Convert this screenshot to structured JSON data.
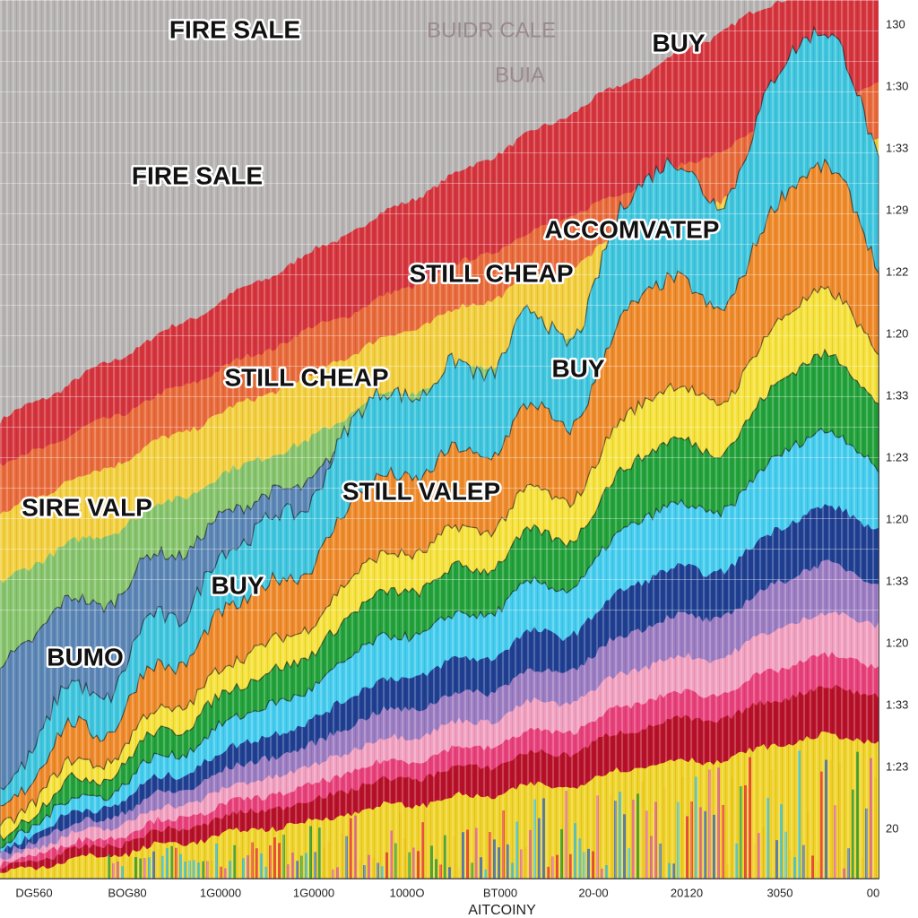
{
  "annotations": [
    "FIRE SALE",
    "BUIDR CALE",
    "BUIA",
    "BUY",
    "FIRE SALE",
    "ACCOMVATEP",
    "STILL CHEAP",
    "STILL CHEAP",
    "BUY",
    "STILL VALEP",
    "SIRE VALP",
    "BUY",
    "BUMO"
  ],
  "y_tick_labels": [
    "130",
    "1:30",
    "1:33",
    "1:29",
    "1:22",
    "1:20",
    "1:33",
    "1:23",
    "1:20",
    "1:33",
    "1:20",
    "1:33",
    "1:23",
    "20"
  ],
  "x_tick_labels": [
    "DG560",
    "BOG80",
    "1G0000",
    "1G0000",
    "1000O",
    "BT000",
    "20-00",
    "20120",
    "3050",
    "00"
  ],
  "x_axis_title": "AITCOINY"
}
